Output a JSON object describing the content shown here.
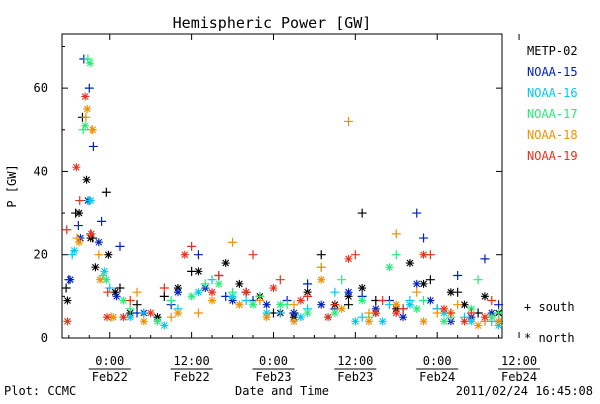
{
  "chart_data": {
    "type": "scatter",
    "title": "Hemispheric Power [GW]",
    "xlabel": "Date and Time",
    "ylabel": "P [GW]",
    "footer_left": "Plot: CCMC",
    "footer_right": "2011/02/24 16:45:08",
    "x_unit": "hours since 2011-02-22 00:00",
    "xlim": [
      -7.0,
      57.5
    ],
    "ylim": [
      0,
      73
    ],
    "grid": false,
    "legend_position": "right",
    "yticks": [
      {
        "value": 0,
        "label": "0"
      },
      {
        "value": 20,
        "label": "20"
      },
      {
        "value": 40,
        "label": "40"
      },
      {
        "value": 60,
        "label": "60"
      }
    ],
    "xticks": [
      {
        "value": 0,
        "time": "0:00",
        "date": "Feb22"
      },
      {
        "value": 12,
        "time": "12:00",
        "date": "Feb22"
      },
      {
        "value": 24,
        "time": "0:00",
        "date": "Feb23"
      },
      {
        "value": 36,
        "time": "12:00",
        "date": "Feb23"
      },
      {
        "value": 48,
        "time": "0:00",
        "date": "Feb24"
      },
      {
        "value": 60,
        "time": "12:00",
        "date": "Feb24"
      }
    ],
    "marker_legend": [
      {
        "symbol": "+",
        "label": "south"
      },
      {
        "symbol": "*",
        "label": "north"
      }
    ],
    "series": [
      {
        "name": "METP-02",
        "color": "#000000",
        "south": [
          [
            -6.4,
            12
          ],
          [
            -5.0,
            30
          ],
          [
            -4.0,
            53
          ],
          [
            -2.5,
            24
          ],
          [
            -0.5,
            35
          ],
          [
            1.5,
            12
          ],
          [
            4,
            8
          ],
          [
            8,
            10
          ],
          [
            12,
            16
          ],
          [
            16,
            15
          ],
          [
            20,
            11
          ],
          [
            24,
            6
          ],
          [
            27,
            6
          ],
          [
            31,
            20
          ],
          [
            35,
            8
          ],
          [
            37,
            30
          ],
          [
            39,
            9
          ],
          [
            43,
            7
          ],
          [
            47,
            14
          ],
          [
            51,
            11
          ],
          [
            54,
            6
          ],
          [
            57,
            4
          ]
        ],
        "north": [
          [
            -6.2,
            9
          ],
          [
            -4.5,
            30
          ],
          [
            -3.4,
            38
          ],
          [
            -2.8,
            24
          ],
          [
            -2.1,
            17
          ],
          [
            -0.2,
            20
          ],
          [
            0.8,
            11
          ],
          [
            3,
            6
          ],
          [
            7,
            5
          ],
          [
            10,
            12
          ],
          [
            13,
            16
          ],
          [
            17,
            18
          ],
          [
            19,
            13
          ],
          [
            22,
            10
          ],
          [
            25,
            6
          ],
          [
            27,
            5
          ],
          [
            29,
            11
          ],
          [
            33,
            8
          ],
          [
            35,
            10
          ],
          [
            37,
            12
          ],
          [
            39,
            6
          ],
          [
            42,
            7
          ],
          [
            44,
            18
          ],
          [
            46,
            13
          ],
          [
            50,
            11
          ],
          [
            52,
            8
          ],
          [
            55,
            10
          ],
          [
            57,
            6
          ]
        ]
      },
      {
        "name": "NOAA-15",
        "color": "#0022bb",
        "south": [
          [
            -6.0,
            14
          ],
          [
            -4.6,
            27
          ],
          [
            -3.8,
            67
          ],
          [
            -3.0,
            60
          ],
          [
            -2.4,
            46
          ],
          [
            -1.2,
            28
          ],
          [
            1.5,
            22
          ],
          [
            4,
            6
          ],
          [
            9,
            8
          ],
          [
            13,
            20
          ],
          [
            17,
            10
          ],
          [
            21,
            9
          ],
          [
            26,
            9
          ],
          [
            29,
            13
          ],
          [
            33,
            7
          ],
          [
            37,
            10
          ],
          [
            41,
            9
          ],
          [
            45,
            30
          ],
          [
            46,
            24
          ],
          [
            48,
            7
          ],
          [
            51,
            15
          ],
          [
            55,
            19
          ],
          [
            57,
            8
          ]
        ],
        "north": [
          [
            -5.8,
            14
          ],
          [
            -4.3,
            24
          ],
          [
            -3.2,
            33
          ],
          [
            -1.6,
            23
          ],
          [
            1,
            10
          ],
          [
            5,
            6
          ],
          [
            10,
            11
          ],
          [
            14,
            12
          ],
          [
            18,
            9
          ],
          [
            23,
            8
          ],
          [
            27,
            6
          ],
          [
            31,
            8
          ],
          [
            35,
            11
          ],
          [
            39,
            7
          ],
          [
            43,
            5
          ],
          [
            45,
            13
          ],
          [
            47,
            9
          ],
          [
            50,
            4
          ],
          [
            53,
            5
          ],
          [
            56,
            6
          ]
        ]
      },
      {
        "name": "NOAA-16",
        "color": "#00c8f0",
        "south": [
          [
            -5.5,
            20
          ],
          [
            -3.0,
            33
          ],
          [
            0,
            12
          ],
          [
            5,
            6
          ],
          [
            10,
            7
          ],
          [
            15,
            14
          ],
          [
            20,
            9
          ],
          [
            25,
            6
          ],
          [
            29,
            7
          ],
          [
            33,
            11
          ],
          [
            37,
            5
          ],
          [
            41,
            8
          ],
          [
            44,
            9
          ],
          [
            48,
            7
          ],
          [
            52,
            5
          ],
          [
            56,
            4
          ]
        ],
        "north": [
          [
            -5.2,
            21
          ],
          [
            -2.8,
            33
          ],
          [
            -0.8,
            16
          ],
          [
            3,
            5
          ],
          [
            8,
            3
          ],
          [
            13,
            11
          ],
          [
            18,
            10
          ],
          [
            23,
            6
          ],
          [
            28,
            5
          ],
          [
            32,
            5
          ],
          [
            36,
            4
          ],
          [
            40,
            4
          ],
          [
            44,
            8
          ],
          [
            49,
            6
          ],
          [
            53,
            4
          ],
          [
            57,
            3
          ]
        ]
      },
      {
        "name": "NOAA-17",
        "color": "#22ee77",
        "south": [
          [
            -3.9,
            50
          ],
          [
            -3.2,
            67
          ],
          [
            -1.0,
            15
          ],
          [
            3,
            7
          ],
          [
            9,
            9
          ],
          [
            14,
            13
          ],
          [
            18,
            11
          ],
          [
            22,
            10
          ],
          [
            26,
            8
          ],
          [
            31,
            17
          ],
          [
            34,
            14
          ],
          [
            38,
            5
          ],
          [
            42,
            20
          ],
          [
            46,
            9
          ],
          [
            50,
            5
          ],
          [
            54,
            14
          ],
          [
            57,
            6
          ]
        ],
        "north": [
          [
            -3.6,
            51
          ],
          [
            -2.9,
            66
          ],
          [
            -0.5,
            14
          ],
          [
            2,
            9
          ],
          [
            7,
            4
          ],
          [
            12,
            10
          ],
          [
            16,
            13
          ],
          [
            21,
            8
          ],
          [
            25,
            8
          ],
          [
            29,
            6
          ],
          [
            33,
            6
          ],
          [
            37,
            9
          ],
          [
            41,
            17
          ],
          [
            45,
            7
          ],
          [
            49,
            4
          ],
          [
            53,
            7
          ],
          [
            56,
            5
          ]
        ]
      },
      {
        "name": "NOAA-18",
        "color": "#f09000",
        "south": [
          [
            -4.8,
            24
          ],
          [
            -3.5,
            53
          ],
          [
            -2.6,
            50
          ],
          [
            -1.6,
            20
          ],
          [
            0.2,
            5
          ],
          [
            4,
            11
          ],
          [
            9,
            5
          ],
          [
            13,
            6
          ],
          [
            18,
            23
          ],
          [
            22,
            9
          ],
          [
            27,
            8
          ],
          [
            31,
            17
          ],
          [
            35,
            52
          ],
          [
            38,
            6
          ],
          [
            42,
            25
          ],
          [
            45,
            11
          ],
          [
            48,
            6
          ],
          [
            51,
            8
          ],
          [
            55,
            4
          ]
        ],
        "north": [
          [
            -4.5,
            23
          ],
          [
            -3.3,
            55
          ],
          [
            -2.5,
            50
          ],
          [
            -1.4,
            14
          ],
          [
            0.5,
            5
          ],
          [
            5,
            4
          ],
          [
            10,
            6
          ],
          [
            15,
            9
          ],
          [
            19,
            8
          ],
          [
            23,
            5
          ],
          [
            27,
            4
          ],
          [
            31,
            14
          ],
          [
            34,
            7
          ],
          [
            38,
            4
          ],
          [
            42,
            8
          ],
          [
            46,
            4
          ],
          [
            50,
            6
          ],
          [
            54,
            3
          ],
          [
            57,
            4
          ]
        ]
      },
      {
        "name": "NOAA-19",
        "color": "#e8301a",
        "south": [
          [
            -6.3,
            26
          ],
          [
            -4.4,
            33
          ],
          [
            -2.8,
            25
          ],
          [
            -0.3,
            11
          ],
          [
            3,
            9
          ],
          [
            8,
            12
          ],
          [
            12,
            22
          ],
          [
            16,
            15
          ],
          [
            21,
            20
          ],
          [
            25,
            14
          ],
          [
            29,
            10
          ],
          [
            33,
            8
          ],
          [
            36,
            20
          ],
          [
            40,
            9
          ],
          [
            43,
            7
          ],
          [
            47,
            20
          ],
          [
            50,
            6
          ],
          [
            53,
            6
          ],
          [
            56,
            9
          ]
        ],
        "north": [
          [
            -6.2,
            4
          ],
          [
            -4.9,
            41
          ],
          [
            -3.6,
            58
          ],
          [
            -2.7,
            25
          ],
          [
            -0.4,
            5
          ],
          [
            2,
            5
          ],
          [
            6,
            6
          ],
          [
            11,
            20
          ],
          [
            15,
            11
          ],
          [
            20,
            11
          ],
          [
            24,
            12
          ],
          [
            28,
            9
          ],
          [
            32,
            5
          ],
          [
            35,
            19
          ],
          [
            39,
            6
          ],
          [
            42,
            6
          ],
          [
            46,
            20
          ],
          [
            49,
            7
          ],
          [
            52,
            4
          ],
          [
            55,
            5
          ]
        ]
      }
    ]
  }
}
